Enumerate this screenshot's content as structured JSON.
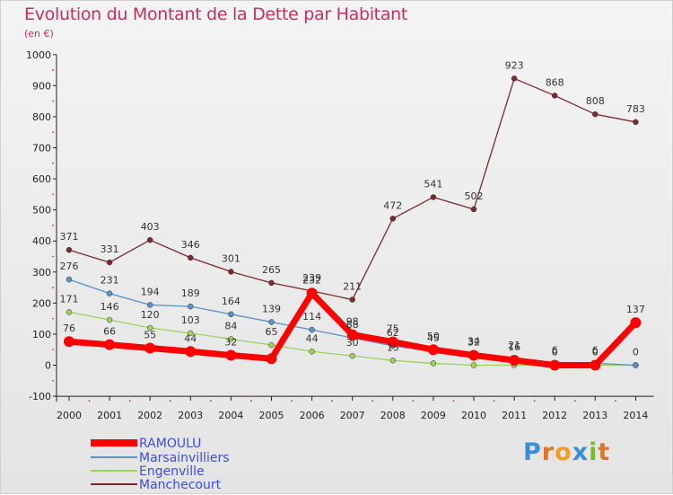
{
  "title": "Evolution du Montant de la Dette par Habitant",
  "subtitle": "(en €)",
  "brand": "Proxiti",
  "chart_data": {
    "type": "line",
    "title": "Evolution du Montant de la Dette par Habitant",
    "subtitle": "(en €)",
    "x": [
      2000,
      2001,
      2002,
      2003,
      2004,
      2005,
      2006,
      2007,
      2008,
      2009,
      2010,
      2011,
      2012,
      2013,
      2014
    ],
    "ylim": [
      -100,
      1000
    ],
    "yticks": [
      -100,
      0,
      100,
      200,
      300,
      400,
      500,
      600,
      700,
      800,
      900,
      1000
    ],
    "grid": false,
    "legend_position": "bottom-left",
    "series": [
      {
        "name": "RAMOULU",
        "color": "#ff0000",
        "values": [
          76,
          66,
          55,
          44,
          32,
          21,
          232,
          98,
          75,
          50,
          32,
          16,
          0,
          0,
          137
        ],
        "labels": [
          "76",
          "66",
          "55",
          "44",
          "32",
          "",
          "232",
          "98",
          "75",
          "50",
          "32",
          "16",
          "0",
          "0",
          "137"
        ]
      },
      {
        "name": "Marsainvilliers",
        "color": "#5b93c7",
        "values": [
          276,
          231,
          194,
          189,
          164,
          139,
          114,
          88,
          62,
          45,
          34,
          21,
          6,
          6,
          0
        ],
        "labels": [
          "276",
          "231",
          "194",
          "189",
          "164",
          "139",
          "114",
          "88",
          "62",
          "45",
          "34",
          "21",
          "6",
          "6",
          ""
        ]
      },
      {
        "name": "Engenville",
        "color": "#9ad35b",
        "values": [
          171,
          146,
          120,
          103,
          84,
          65,
          44,
          30,
          15,
          6,
          0,
          0,
          0,
          0,
          0
        ],
        "labels": [
          "171",
          "146",
          "120",
          "103",
          "84",
          "65",
          "44",
          "30",
          "15",
          "",
          "",
          "",
          "0",
          "0",
          "0"
        ]
      },
      {
        "name": "Manchecourt",
        "color": "#7a2a2a",
        "values": [
          371,
          331,
          403,
          346,
          301,
          265,
          239,
          211,
          472,
          541,
          502,
          923,
          868,
          808,
          783
        ],
        "labels": [
          "371",
          "331",
          "403",
          "346",
          "301",
          "265",
          "239",
          "211",
          "472",
          "541",
          "502",
          "923",
          "868",
          "808",
          "783"
        ]
      }
    ]
  }
}
